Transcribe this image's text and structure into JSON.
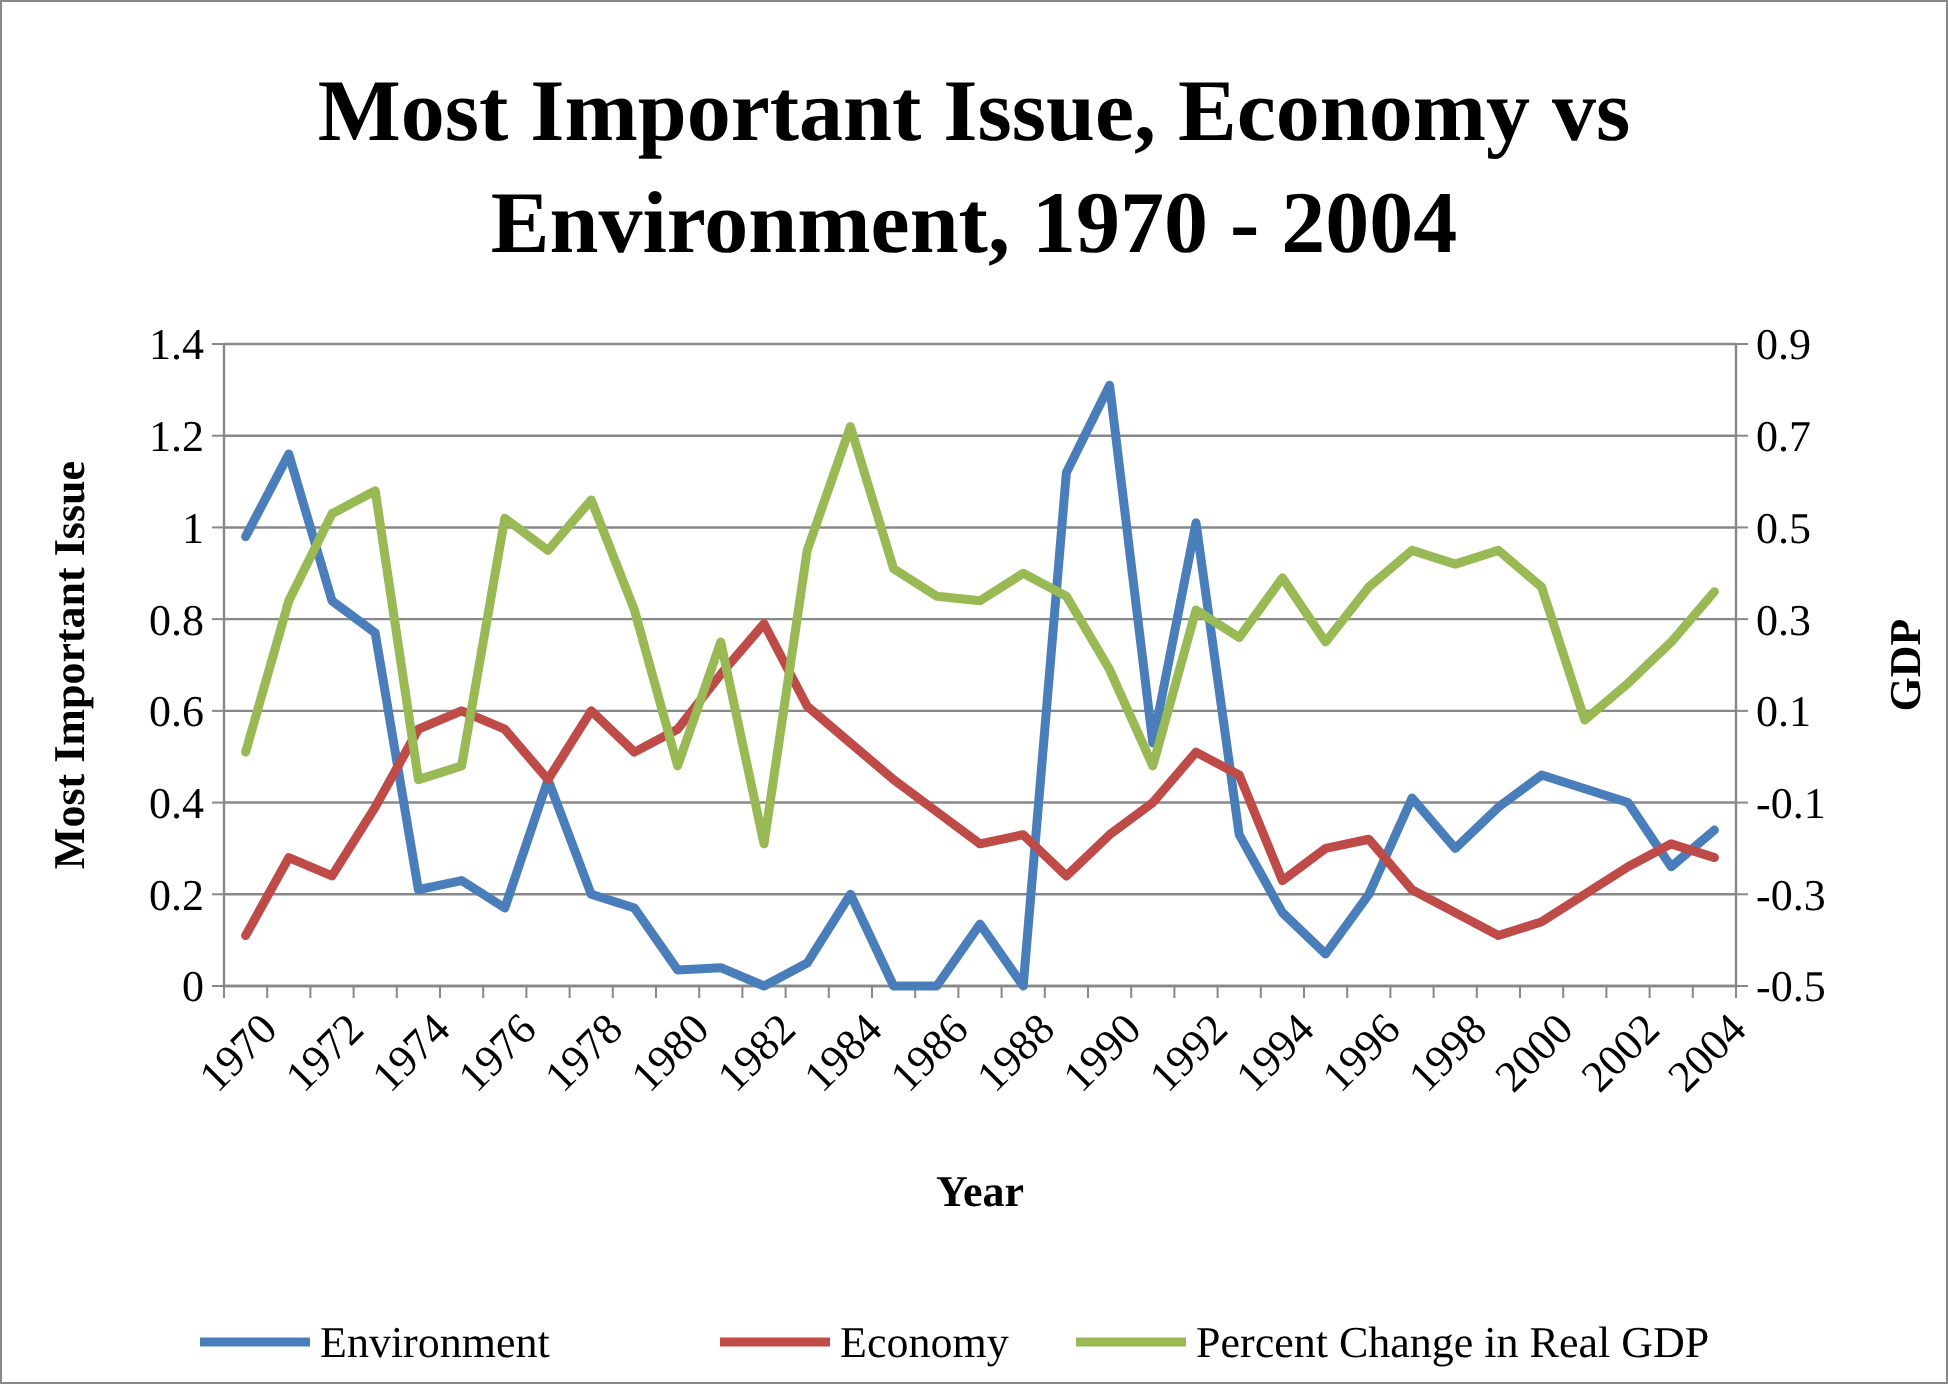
{
  "chart_data": {
    "type": "line",
    "title": "Most Important Issue, Economy vs Environment, 1970 - 2004",
    "xlabel": "Year",
    "ylabel": "Most Important Issue",
    "y2label": "GDP",
    "categories": [
      "1970",
      null,
      "1972",
      null,
      "1974",
      null,
      "1976",
      null,
      "1978",
      null,
      "1980",
      null,
      "1982",
      null,
      "1984",
      null,
      "1986",
      null,
      "1988",
      null,
      "1990",
      null,
      "1992",
      null,
      "1994",
      null,
      "1996",
      null,
      "1998",
      null,
      "2000",
      null,
      "2002",
      null,
      "2004"
    ],
    "series": [
      {
        "name": "Environment",
        "color": "#4a7ebb",
        "values": [
          0.98,
          1.16,
          0.84,
          0.77,
          0.21,
          0.23,
          0.17,
          0.45,
          0.2,
          0.17,
          0.035,
          0.04,
          0.0,
          0.05,
          0.2,
          0.0,
          0.0,
          0.135,
          0.0,
          1.12,
          1.31,
          0.53,
          1.01,
          0.33,
          0.16,
          0.07,
          0.2,
          0.41,
          0.3,
          0.39,
          0.46,
          0.43,
          0.4,
          0.26,
          0.34
        ]
      },
      {
        "name": "Economy",
        "color": "#be4b48",
        "values": [
          0.11,
          0.28,
          0.24,
          0.39,
          0.56,
          0.6,
          0.56,
          0.45,
          0.6,
          0.51,
          0.56,
          0.68,
          0.79,
          0.61,
          0.53,
          0.45,
          0.38,
          0.31,
          0.33,
          0.24,
          0.33,
          0.4,
          0.51,
          0.46,
          0.23,
          0.3,
          0.32,
          0.21,
          0.16,
          0.11,
          0.14,
          0.2,
          0.26,
          0.31,
          0.28
        ]
      },
      {
        "name": "Percent Change in Real GDP",
        "color": "#98b954",
        "axis": "y2",
        "values": [
          0.01,
          0.34,
          0.53,
          0.58,
          -0.05,
          -0.02,
          0.52,
          0.45,
          0.56,
          0.32,
          -0.02,
          0.25,
          -0.19,
          0.45,
          0.72,
          0.41,
          0.35,
          0.34,
          0.4,
          0.35,
          0.19,
          -0.02,
          0.32,
          0.26,
          0.39,
          0.25,
          0.37,
          0.45,
          0.42,
          0.45,
          0.37,
          0.08,
          0.16,
          0.25,
          0.36
        ]
      }
    ],
    "ylim": [
      0,
      1.4
    ],
    "yticks": [
      0,
      0.2,
      0.4,
      0.6,
      0.8,
      1,
      1.2,
      1.4
    ],
    "y2lim": [
      -0.5,
      0.9
    ],
    "y2ticks": [
      -0.5,
      -0.3,
      -0.1,
      0.1,
      0.3,
      0.5,
      0.7,
      0.9
    ],
    "grid": "y",
    "legend": "bottom",
    "marker": "none",
    "line_style": "solid"
  }
}
